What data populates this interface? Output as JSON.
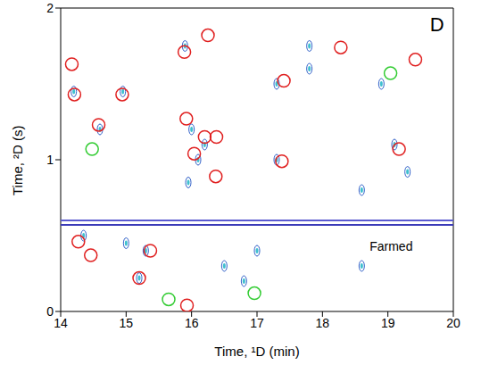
{
  "chart_data": {
    "type": "scatter",
    "xlabel": "Time, ¹D (min)",
    "ylabel": "Time, ²D (s)",
    "xlim": [
      14,
      20
    ],
    "xticks": [
      14,
      15,
      16,
      17,
      18,
      19,
      20
    ],
    "ylim": [
      0,
      2
    ],
    "yticks": [
      0,
      1,
      2
    ],
    "grid": false,
    "annotations": [
      {
        "text": "D",
        "x": 19.75,
        "y": 1.88
      },
      {
        "text": "Farmed",
        "x": 19.05,
        "y": 0.42
      }
    ],
    "series": [
      {
        "type": "line",
        "color": "#3a3ab8",
        "x": [
          14,
          20
        ],
        "y": [
          0.57,
          0.57
        ]
      },
      {
        "type": "line",
        "color": "#5a5ad0",
        "x": [
          14,
          20
        ],
        "y": [
          0.6,
          0.6
        ]
      },
      {
        "type": "scatter",
        "color": "#2f5fc8",
        "marker": "dot",
        "x": [
          14.2,
          14.35,
          14.95,
          15.3,
          15.2,
          15.0,
          15.9,
          16.0,
          16.1,
          16.2,
          15.95,
          17.3,
          17.3,
          17.8,
          17.8,
          18.9,
          19.1,
          19.3,
          16.8,
          16.5,
          18.6,
          18.6,
          17.0,
          14.6
        ],
        "y": [
          1.45,
          0.5,
          1.45,
          0.4,
          0.22,
          0.45,
          1.75,
          1.2,
          1.0,
          1.1,
          0.85,
          1.5,
          1.0,
          1.75,
          1.6,
          1.5,
          1.1,
          0.92,
          0.2,
          0.3,
          0.3,
          0.8,
          0.4,
          1.2
        ]
      },
      {
        "type": "scatter",
        "color": "#e02020",
        "marker": "open_circle",
        "x": [
          14.17,
          14.21,
          14.58,
          14.94,
          15.89,
          16.25,
          15.92,
          16.04,
          16.2,
          16.38,
          16.37,
          17.41,
          17.38,
          18.28,
          19.42,
          19.17,
          14.27,
          14.46,
          15.37,
          15.2,
          15.93
        ],
        "y": [
          1.63,
          1.43,
          1.23,
          1.43,
          1.71,
          1.82,
          1.27,
          1.04,
          1.15,
          1.15,
          0.89,
          1.52,
          0.99,
          1.74,
          1.66,
          1.07,
          0.46,
          0.37,
          0.4,
          0.22,
          0.04
        ]
      },
      {
        "type": "scatter",
        "color": "#33cc33",
        "marker": "open_circle",
        "x": [
          14.48,
          19.04,
          15.65,
          16.96
        ],
        "y": [
          1.07,
          1.57,
          0.08,
          0.12
        ]
      }
    ]
  }
}
